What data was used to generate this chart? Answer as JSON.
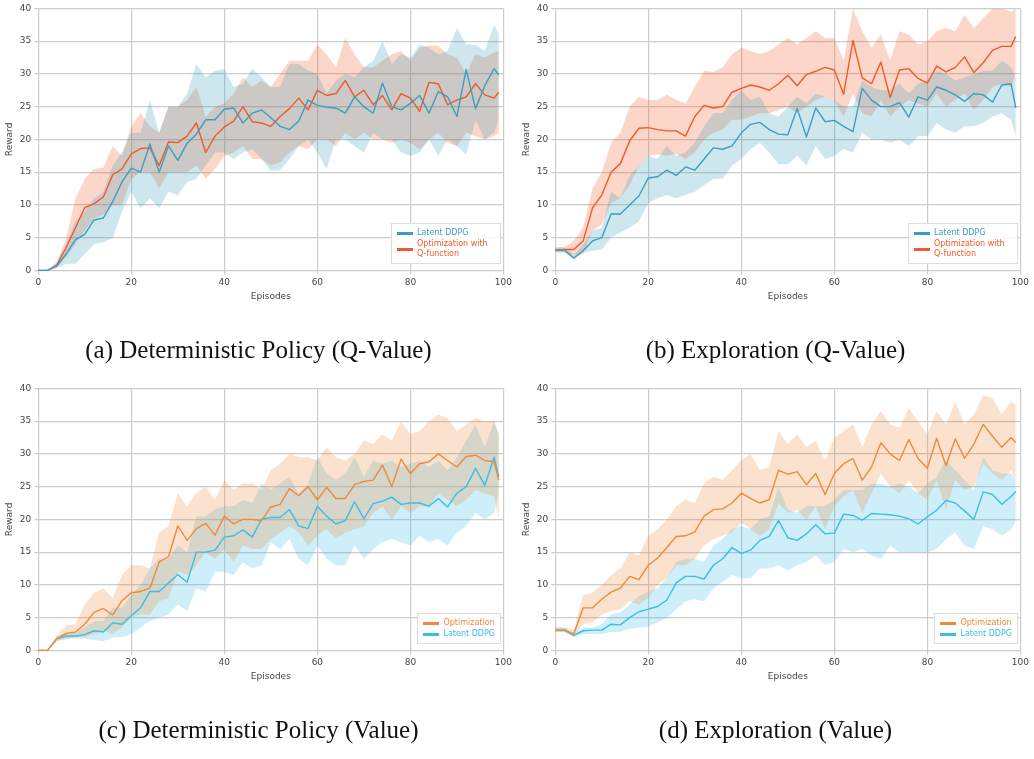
{
  "chart_data": [
    {
      "type": "line",
      "title": "(a) Deterministic Policy (Q-Value)",
      "xlabel": "Episodes",
      "ylabel": "Reward",
      "xlim": [
        0,
        100
      ],
      "xticks": [
        0,
        20,
        40,
        60,
        80,
        100
      ],
      "ylim": [
        0,
        40
      ],
      "yticks": [
        0,
        5,
        10,
        15,
        20,
        25,
        30,
        35,
        40
      ],
      "grid": true,
      "legend": "bottom right",
      "x": [
        0,
        2,
        4,
        6,
        8,
        10,
        12,
        14,
        16,
        18,
        20,
        22,
        24,
        26,
        28,
        30,
        32,
        34,
        36,
        38,
        40,
        42,
        44,
        46,
        48,
        50,
        52,
        54,
        56,
        58,
        60,
        62,
        64,
        66,
        68,
        70,
        72,
        74,
        76,
        78,
        80,
        82,
        84,
        86,
        88,
        90,
        92,
        94,
        96,
        98,
        99
      ],
      "series": [
        {
          "name": "Latent DDPG",
          "color": "#3a9fbf",
          "values": [
            0,
            0,
            0.7,
            2.5,
            4.7,
            5.5,
            7.7,
            8,
            10.5,
            13.5,
            15.6,
            15,
            19.3,
            15,
            19,
            16.8,
            19.4,
            20.8,
            23,
            23,
            24.6,
            24.8,
            22.5,
            24,
            24.5,
            23.3,
            22,
            21.5,
            22.8,
            26,
            25.2,
            24.9,
            24.8,
            24,
            26.5,
            25,
            24,
            28.6,
            25,
            24.5,
            25.5,
            26.7,
            24,
            27.3,
            26.5,
            23.5,
            30.7,
            24.7,
            28.2,
            30.8,
            29.8
          ],
          "lower": [
            0,
            0,
            0.3,
            1,
            1,
            2.5,
            4,
            4.3,
            5,
            9,
            12,
            9.5,
            11,
            9.5,
            12,
            11.5,
            13.5,
            14,
            16,
            18,
            18,
            17,
            18,
            18.5,
            17,
            15.2,
            15.3,
            17,
            19,
            20,
            18,
            15.5,
            20,
            20,
            19,
            18,
            21,
            20,
            20,
            18,
            17.5,
            18,
            20,
            17.5,
            20,
            19,
            17.7,
            23,
            20,
            21,
            23
          ],
          "upper": [
            0,
            0,
            1.3,
            4,
            7.5,
            9,
            11,
            12,
            16,
            18,
            21,
            21,
            26,
            21,
            25,
            25,
            27,
            31.5,
            29.5,
            30.5,
            30.7,
            28,
            28.5,
            30.8,
            29.5,
            28,
            28,
            31.5,
            31.5,
            30.5,
            30,
            27,
            29,
            30,
            29.5,
            31,
            32,
            35,
            31.5,
            33,
            32.5,
            34.5,
            34,
            33,
            33.5,
            37,
            34.5,
            34.5,
            33.5,
            37.5,
            36
          ]
        },
        {
          "name": "Optimization with Q-function",
          "color": "#f05a28",
          "values": [
            0,
            0,
            0.8,
            3.5,
            6.5,
            9.6,
            10.2,
            11.2,
            14.6,
            15.5,
            17.8,
            18.6,
            18.7,
            16,
            19.6,
            19.5,
            20.5,
            22.5,
            18,
            20.5,
            21.9,
            22.8,
            25,
            22.7,
            22.5,
            22,
            23.5,
            24.7,
            26.3,
            24.5,
            27.5,
            26.7,
            27,
            29,
            26.5,
            27.5,
            25.3,
            26.7,
            24.5,
            27,
            26.3,
            24.3,
            28.7,
            28.5,
            25.3,
            26,
            26.5,
            28.5,
            26.8,
            26.3,
            27.2
          ],
          "lower": [
            0,
            0,
            0.5,
            2,
            4,
            6,
            8,
            8.5,
            10,
            10,
            14,
            15,
            15,
            12.5,
            15,
            15,
            15,
            16,
            14,
            15.5,
            17.5,
            18,
            19,
            17,
            17,
            16,
            16.5,
            18,
            19,
            18.5,
            20,
            20,
            19,
            21,
            20,
            21,
            20,
            20,
            19.5,
            20,
            19.5,
            18.5,
            20,
            21,
            19.5,
            19,
            21,
            20.5,
            20,
            20.5,
            21
          ],
          "upper": [
            0,
            0,
            1.2,
            5,
            11,
            14,
            15.5,
            15.7,
            19,
            17.5,
            22,
            24,
            22,
            21,
            25,
            25,
            26,
            28,
            23.5,
            25,
            25.5,
            27,
            29.5,
            28,
            29,
            28,
            30,
            32,
            32,
            32,
            34.5,
            33,
            31,
            35.5,
            33,
            31,
            31,
            32,
            33,
            33.5,
            32,
            34,
            34.3,
            34.3,
            33,
            32.5,
            30,
            33,
            32.5,
            33.3,
            33.5
          ]
        }
      ]
    },
    {
      "type": "line",
      "title": "(b) Exploration (Q-Value)",
      "xlabel": "Episodes",
      "ylabel": "Reward",
      "xlim": [
        0,
        100
      ],
      "xticks": [
        0,
        20,
        40,
        60,
        80,
        100
      ],
      "ylim": [
        0,
        40
      ],
      "yticks": [
        0,
        5,
        10,
        15,
        20,
        25,
        30,
        35,
        40
      ],
      "grid": true,
      "legend": "bottom right",
      "x": [
        0,
        2,
        4,
        6,
        8,
        10,
        12,
        14,
        16,
        18,
        20,
        22,
        24,
        26,
        28,
        30,
        32,
        34,
        36,
        38,
        40,
        42,
        44,
        46,
        48,
        50,
        52,
        54,
        56,
        58,
        60,
        62,
        64,
        66,
        68,
        70,
        72,
        74,
        76,
        78,
        80,
        82,
        84,
        86,
        88,
        90,
        92,
        94,
        96,
        98,
        99
      ],
      "series": [
        {
          "name": "Latent DDPG",
          "color": "#3a9fbf",
          "values": [
            3.1,
            3.1,
            1.9,
            3,
            4.5,
            5,
            8.6,
            8.6,
            10,
            11.4,
            14.1,
            14.3,
            15.3,
            14.5,
            15.8,
            15.3,
            17,
            18.7,
            18.5,
            19,
            21,
            22.3,
            22.6,
            21.5,
            20.8,
            20.7,
            24.7,
            20.4,
            24.8,
            22.7,
            22.9,
            22,
            21.2,
            27.8,
            26,
            25,
            25,
            25.6,
            23.4,
            26.5,
            26,
            28,
            27.5,
            26.8,
            25.8,
            27,
            26.8,
            25.7,
            28.3,
            28.5,
            24.8
          ],
          "lower": [
            2.7,
            2.7,
            1.6,
            2.7,
            3,
            3.2,
            5,
            5.8,
            6.5,
            7.5,
            10.3,
            11,
            11.5,
            11,
            11.5,
            12,
            13,
            14,
            14,
            16,
            17,
            18.5,
            19.5,
            18,
            16.2,
            16.2,
            17.5,
            16,
            19,
            17,
            17.5,
            18.5,
            18,
            21,
            20,
            20,
            19.5,
            20,
            19,
            20.5,
            20.5,
            22.5,
            21.5,
            21,
            22,
            22,
            22.5,
            23.5,
            24,
            23,
            20.5
          ],
          "upper": [
            3.5,
            3.5,
            2.3,
            4,
            6,
            6.5,
            12,
            11,
            14.5,
            16,
            17.5,
            17,
            19,
            17.5,
            18,
            19.5,
            22,
            24,
            24,
            26,
            27.5,
            26,
            26.5,
            24,
            23.5,
            25,
            26.5,
            25.5,
            27,
            26.5,
            26,
            25,
            25,
            29,
            28,
            27.5,
            27.5,
            28.5,
            27,
            28.5,
            29,
            30.5,
            30,
            29,
            29.5,
            30,
            30.5,
            30.5,
            32,
            31,
            29.5
          ]
        },
        {
          "name": "Optimization with Q-function",
          "color": "#f05a28",
          "values": [
            3.1,
            3.2,
            3.2,
            4.5,
            9.5,
            11.5,
            15,
            16.3,
            19.8,
            21.7,
            21.8,
            21.5,
            21.3,
            21.3,
            20.5,
            23.5,
            25.2,
            24.8,
            25,
            27.2,
            27.8,
            28.3,
            28,
            27.5,
            28.5,
            29.8,
            28.2,
            29.9,
            30.4,
            31,
            30.6,
            26.9,
            35.1,
            29.4,
            28.5,
            31.8,
            26.4,
            30.6,
            30.8,
            29.3,
            28.6,
            31.2,
            30.3,
            31,
            32.6,
            30.2,
            31.7,
            33.6,
            34.2,
            34.2,
            35.7
          ],
          "lower": [
            2.8,
            2.8,
            2.3,
            2.5,
            6,
            7,
            10.3,
            11,
            13,
            16,
            17.5,
            17.7,
            17.5,
            17.8,
            17,
            18,
            20,
            21,
            21.5,
            23,
            23,
            23.5,
            24,
            24,
            24.5,
            25,
            24,
            25,
            26,
            26.5,
            26,
            23.5,
            27,
            24,
            23.5,
            26,
            23.5,
            25,
            26,
            25.5,
            25,
            27,
            25,
            26,
            27,
            24.5,
            26,
            28,
            28.5,
            28,
            30
          ],
          "upper": [
            3.5,
            3.6,
            4.5,
            6.5,
            12.5,
            15,
            19.5,
            21,
            25,
            26.5,
            26,
            26,
            26.8,
            26,
            25.5,
            28,
            30.5,
            30.3,
            31,
            33,
            34,
            33.5,
            33,
            33.5,
            34.5,
            35.5,
            34.5,
            35.5,
            36.5,
            35.5,
            35.5,
            32,
            40,
            36.5,
            34,
            36,
            32,
            36.5,
            36,
            34.5,
            35,
            36.5,
            37,
            36.5,
            39,
            37,
            38.5,
            40,
            40,
            39.5,
            40
          ]
        }
      ]
    },
    {
      "type": "line",
      "title": "(c) Deterministic Policy (Value)",
      "xlabel": "Episodes",
      "ylabel": "Reward",
      "xlim": [
        0,
        100
      ],
      "xticks": [
        0,
        20,
        40,
        60,
        80,
        100
      ],
      "ylim": [
        0,
        40
      ],
      "yticks": [
        0,
        5,
        10,
        15,
        20,
        25,
        30,
        35,
        40
      ],
      "grid": true,
      "legend": "bottom right",
      "x": [
        0,
        2,
        4,
        6,
        8,
        10,
        12,
        14,
        16,
        18,
        20,
        22,
        24,
        26,
        28,
        30,
        32,
        34,
        36,
        38,
        40,
        42,
        44,
        46,
        48,
        50,
        52,
        54,
        56,
        58,
        60,
        62,
        64,
        66,
        68,
        70,
        72,
        74,
        76,
        78,
        80,
        82,
        84,
        86,
        88,
        90,
        92,
        94,
        96,
        98,
        99
      ],
      "series": [
        {
          "name": "Optimization",
          "color": "#ef8a3a",
          "values": [
            0,
            0,
            1.8,
            2.6,
            2.8,
            4,
            5.8,
            6.4,
            5.4,
            7.6,
            8.8,
            9,
            9.5,
            13.5,
            14.3,
            19,
            16.8,
            18.6,
            19.4,
            17.6,
            20.5,
            19.3,
            20,
            20,
            19.8,
            21.9,
            22.3,
            24.7,
            23.6,
            25,
            23,
            24.9,
            23.2,
            23.2,
            25.3,
            25.8,
            26,
            28.3,
            25,
            29.2,
            27,
            28.5,
            28.8,
            30,
            29,
            28,
            29.6,
            29.8,
            29,
            28.8,
            26
          ],
          "lower": [
            0,
            0,
            1.4,
            1.7,
            2,
            2,
            2.5,
            3,
            2.5,
            3.5,
            5,
            5.5,
            5.5,
            7.5,
            8,
            12,
            11.5,
            13,
            15,
            14,
            15.5,
            13.5,
            16,
            15.5,
            15.5,
            17,
            18,
            19,
            18,
            16,
            17.5,
            18.5,
            17,
            18,
            18.5,
            19,
            21,
            22,
            20,
            22,
            21,
            22,
            22,
            24,
            23,
            22,
            23,
            24.5,
            24,
            23.5,
            20
          ],
          "upper": [
            0,
            0,
            2.2,
            3.8,
            4,
            7,
            8.8,
            9.5,
            8,
            11.5,
            13,
            13,
            12.5,
            18,
            19,
            24,
            22,
            24,
            25,
            23,
            26,
            24.5,
            25.5,
            25.5,
            24.5,
            27.5,
            28.5,
            30,
            29.5,
            29.5,
            29,
            31,
            29.5,
            29,
            30,
            32,
            31.5,
            33,
            32,
            35,
            33,
            33.5,
            35,
            36,
            35.5,
            33.5,
            34.5,
            35.5,
            35,
            35,
            33
          ]
        },
        {
          "name": "Latent DDPG",
          "color": "#3bbde6",
          "values": [
            0,
            0,
            1.8,
            2.2,
            2.2,
            2.4,
            3,
            2.8,
            4.2,
            4,
            5.3,
            6.5,
            9,
            9,
            10.3,
            11.6,
            10.4,
            15,
            15,
            15.3,
            17.3,
            17.5,
            18.4,
            17.3,
            20,
            20.3,
            20.3,
            21.5,
            19,
            18.6,
            22,
            20.5,
            19.3,
            19.8,
            22.7,
            20.1,
            22.4,
            22.8,
            23.4,
            22.3,
            22.5,
            22.5,
            22,
            23.2,
            21.9,
            24,
            25,
            27.8,
            25.2,
            29.5,
            26.5
          ],
          "lower": [
            0,
            0,
            1.5,
            1.8,
            1.8,
            1.8,
            1.6,
            1.4,
            2,
            2,
            2.5,
            3.5,
            4.5,
            5,
            5.5,
            7,
            6,
            9.5,
            9,
            12,
            12,
            11.5,
            13.5,
            12.5,
            13,
            16.5,
            15.5,
            17,
            14,
            13,
            16,
            14,
            13,
            13,
            16,
            14,
            15.5,
            16.5,
            17,
            16.5,
            16,
            17.5,
            16.5,
            17,
            16,
            18,
            19,
            21,
            20,
            21,
            24
          ],
          "upper": [
            0,
            0,
            2.2,
            2.6,
            2.8,
            3.5,
            4.5,
            4.5,
            6.5,
            6.5,
            8.5,
            10,
            12.5,
            14,
            14,
            16,
            15,
            20.5,
            20.5,
            21.5,
            22,
            22,
            23,
            22.5,
            25.5,
            24.5,
            25.5,
            26.5,
            24,
            25.5,
            29.5,
            27,
            26,
            27,
            29.5,
            26.5,
            29,
            28.5,
            29,
            28,
            28.5,
            29,
            28,
            29,
            27.5,
            29.5,
            32,
            34.5,
            31,
            35,
            33
          ]
        }
      ]
    },
    {
      "type": "line",
      "title": "(d) Exploration (Value)",
      "xlabel": "Episodes",
      "ylabel": "Reward",
      "xlim": [
        0,
        100
      ],
      "xticks": [
        0,
        20,
        40,
        60,
        80,
        100
      ],
      "ylim": [
        0,
        40
      ],
      "yticks": [
        0,
        5,
        10,
        15,
        20,
        25,
        30,
        35,
        40
      ],
      "grid": true,
      "legend": "bottom right",
      "x": [
        0,
        2,
        4,
        6,
        8,
        10,
        12,
        14,
        16,
        18,
        20,
        22,
        24,
        26,
        28,
        30,
        32,
        34,
        36,
        38,
        40,
        42,
        44,
        46,
        48,
        50,
        52,
        54,
        56,
        58,
        60,
        62,
        64,
        66,
        68,
        70,
        72,
        74,
        76,
        78,
        80,
        82,
        84,
        86,
        88,
        90,
        92,
        94,
        96,
        98,
        99
      ],
      "series": [
        {
          "name": "Optimization",
          "color": "#ef8a3a",
          "values": [
            3.1,
            3.1,
            2.5,
            6.5,
            6.5,
            7.8,
            8.9,
            9.5,
            11.3,
            10.8,
            13,
            14.1,
            15.7,
            17.4,
            17.5,
            18.1,
            20.5,
            21.5,
            21.6,
            22.5,
            24,
            23.2,
            22.5,
            23,
            27.5,
            26.9,
            27.3,
            25.3,
            27,
            23.8,
            27,
            28.5,
            29.3,
            26,
            28,
            31.7,
            30,
            29,
            32.2,
            29.3,
            27.8,
            32.4,
            28.2,
            32.3,
            29.3,
            31.5,
            34.5,
            32.7,
            31,
            32.5,
            31.7
          ],
          "lower": [
            2.8,
            2.8,
            2.2,
            4,
            4.3,
            5.5,
            6,
            6.2,
            7.5,
            7,
            8,
            10,
            11,
            13,
            13,
            14,
            16,
            17,
            17.5,
            18,
            19.5,
            18.5,
            17.5,
            18.5,
            22.5,
            21,
            21.5,
            20,
            22,
            18.5,
            22,
            23.5,
            24.5,
            21,
            24,
            27,
            25,
            24,
            26,
            24,
            23,
            26,
            21.5,
            26,
            24.5,
            25,
            28.5,
            27,
            26,
            27.5,
            26
          ],
          "upper": [
            3.5,
            3.5,
            3.2,
            8.5,
            8.8,
            10,
            11.5,
            12.5,
            15,
            14.5,
            17.5,
            18.5,
            20,
            22,
            23,
            22.5,
            25.5,
            26.5,
            26,
            27.5,
            29,
            30,
            27.5,
            28,
            33.5,
            31.5,
            33,
            31,
            32,
            29,
            32.5,
            33.5,
            34.5,
            31,
            34.5,
            36.5,
            34.5,
            34,
            37,
            35,
            33,
            36.5,
            34.5,
            38,
            34.5,
            36,
            39,
            38.5,
            36,
            38,
            37.5
          ]
        },
        {
          "name": "Latent DDPG",
          "color": "#3bbde6",
          "values": [
            3.1,
            3.1,
            2.3,
            3,
            3.1,
            3.1,
            4,
            3.9,
            5,
            5.9,
            6.3,
            6.7,
            7.7,
            10.3,
            11.3,
            11.3,
            10.9,
            13,
            14,
            15.7,
            14.8,
            15.3,
            16.8,
            17.4,
            19.8,
            17.2,
            16.8,
            17.8,
            19.2,
            17.8,
            17.9,
            20.8,
            20.6,
            19.9,
            20.9,
            20.8,
            20.7,
            20.5,
            20.1,
            19.3,
            20.4,
            21.4,
            22.9,
            22.5,
            21.3,
            20,
            24.2,
            23.8,
            22.3,
            23.5,
            24.3
          ],
          "lower": [
            2.8,
            2.8,
            2,
            2.5,
            2.5,
            2.5,
            2.8,
            2.8,
            3.3,
            3.5,
            3.6,
            4.3,
            5,
            6.3,
            7.5,
            7.8,
            7.5,
            9.5,
            10.5,
            11.5,
            11,
            11,
            12.5,
            12.5,
            13,
            12.2,
            13,
            13.5,
            14.5,
            13,
            13.5,
            15.5,
            15,
            15.5,
            14.5,
            14,
            16,
            15,
            15,
            15,
            15,
            15.5,
            17,
            18,
            16,
            15.5,
            19,
            18.5,
            17.5,
            18.5,
            19.7
          ],
          "upper": [
            3.5,
            3.5,
            2.6,
            3.5,
            3.5,
            4,
            5.5,
            5.8,
            7,
            8.3,
            9,
            9.5,
            11,
            13.5,
            14,
            14,
            13.5,
            16,
            17,
            18.5,
            19,
            18.5,
            20,
            20.5,
            25,
            21.5,
            21,
            22,
            22,
            22,
            23,
            24.5,
            24.5,
            24.5,
            25.5,
            25.5,
            25,
            25.5,
            25,
            24,
            25.5,
            26.5,
            29,
            27.5,
            26,
            24.5,
            29.5,
            27.5,
            27,
            27,
            26
          ]
        }
      ]
    }
  ]
}
